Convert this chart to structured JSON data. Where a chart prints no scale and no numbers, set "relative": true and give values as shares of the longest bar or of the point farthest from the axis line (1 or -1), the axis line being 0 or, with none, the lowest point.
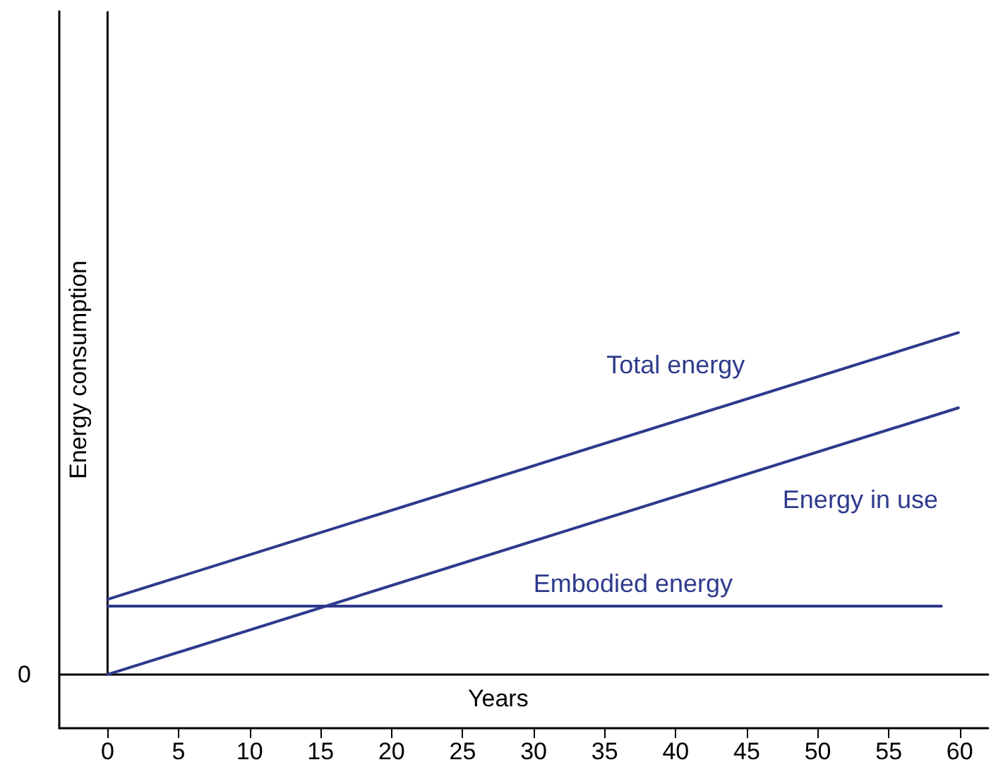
{
  "chart_data": {
    "type": "line",
    "relative": true,
    "xlabel": "Years",
    "ylabel": "Energy consumption",
    "xlim": [
      -3.4,
      62
    ],
    "xticks": [
      0,
      5,
      10,
      15,
      20,
      25,
      30,
      35,
      40,
      45,
      50,
      55,
      60
    ],
    "series": [
      {
        "name": "Total energy",
        "color": "#2e3a8c",
        "x": [
          0,
          59.9
        ],
        "values": [
          0.22,
          1
        ]
      },
      {
        "name": "Energy in use",
        "color": "#2e3a8c",
        "x": [
          0,
          59.9
        ],
        "values": [
          0,
          0.78
        ]
      },
      {
        "name": "Embodied energy",
        "color": "#2e3a8c",
        "x": [
          0,
          58.7
        ],
        "values": [
          0.2,
          0.2
        ]
      }
    ],
    "ref_lines": [
      {
        "axis": "x",
        "value": 0,
        "color": "#000000"
      }
    ],
    "annotations": [
      "0"
    ],
    "grid": false,
    "legend": false,
    "marker": "none",
    "line_style": "solid"
  }
}
